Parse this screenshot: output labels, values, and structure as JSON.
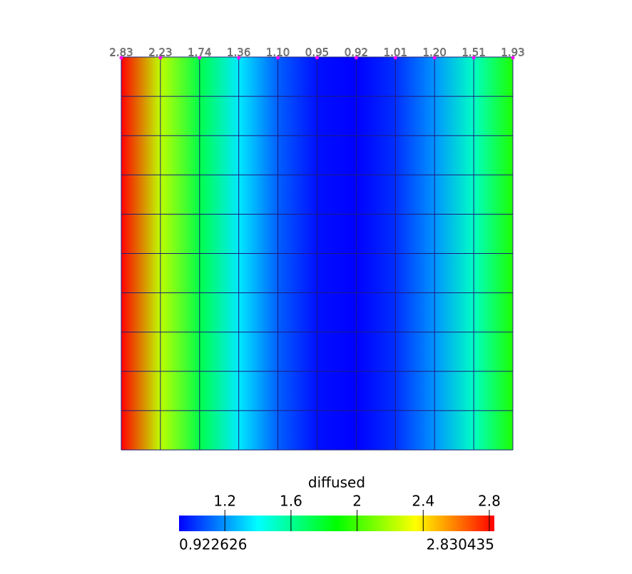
{
  "chart_data": {
    "type": "field",
    "values": [
      2.83,
      2.23,
      1.74,
      1.36,
      1.1,
      0.95,
      0.92,
      1.01,
      1.2,
      1.51,
      1.93
    ],
    "value_labels": [
      "2.83",
      "2.23",
      "1.74",
      "1.36",
      "1.10",
      "0.95",
      "0.92",
      "1.01",
      "1.20",
      "1.51",
      "1.93"
    ],
    "colormap": [
      "#0000ff",
      "#00ffff",
      "#00ff00",
      "#ffff00",
      "#ff0000"
    ],
    "colorbar": {
      "title": "diffused",
      "lim": [
        0.922626,
        2.830435
      ],
      "ticks": [
        1.2,
        1.6,
        2,
        2.4,
        2.8
      ]
    }
  }
}
